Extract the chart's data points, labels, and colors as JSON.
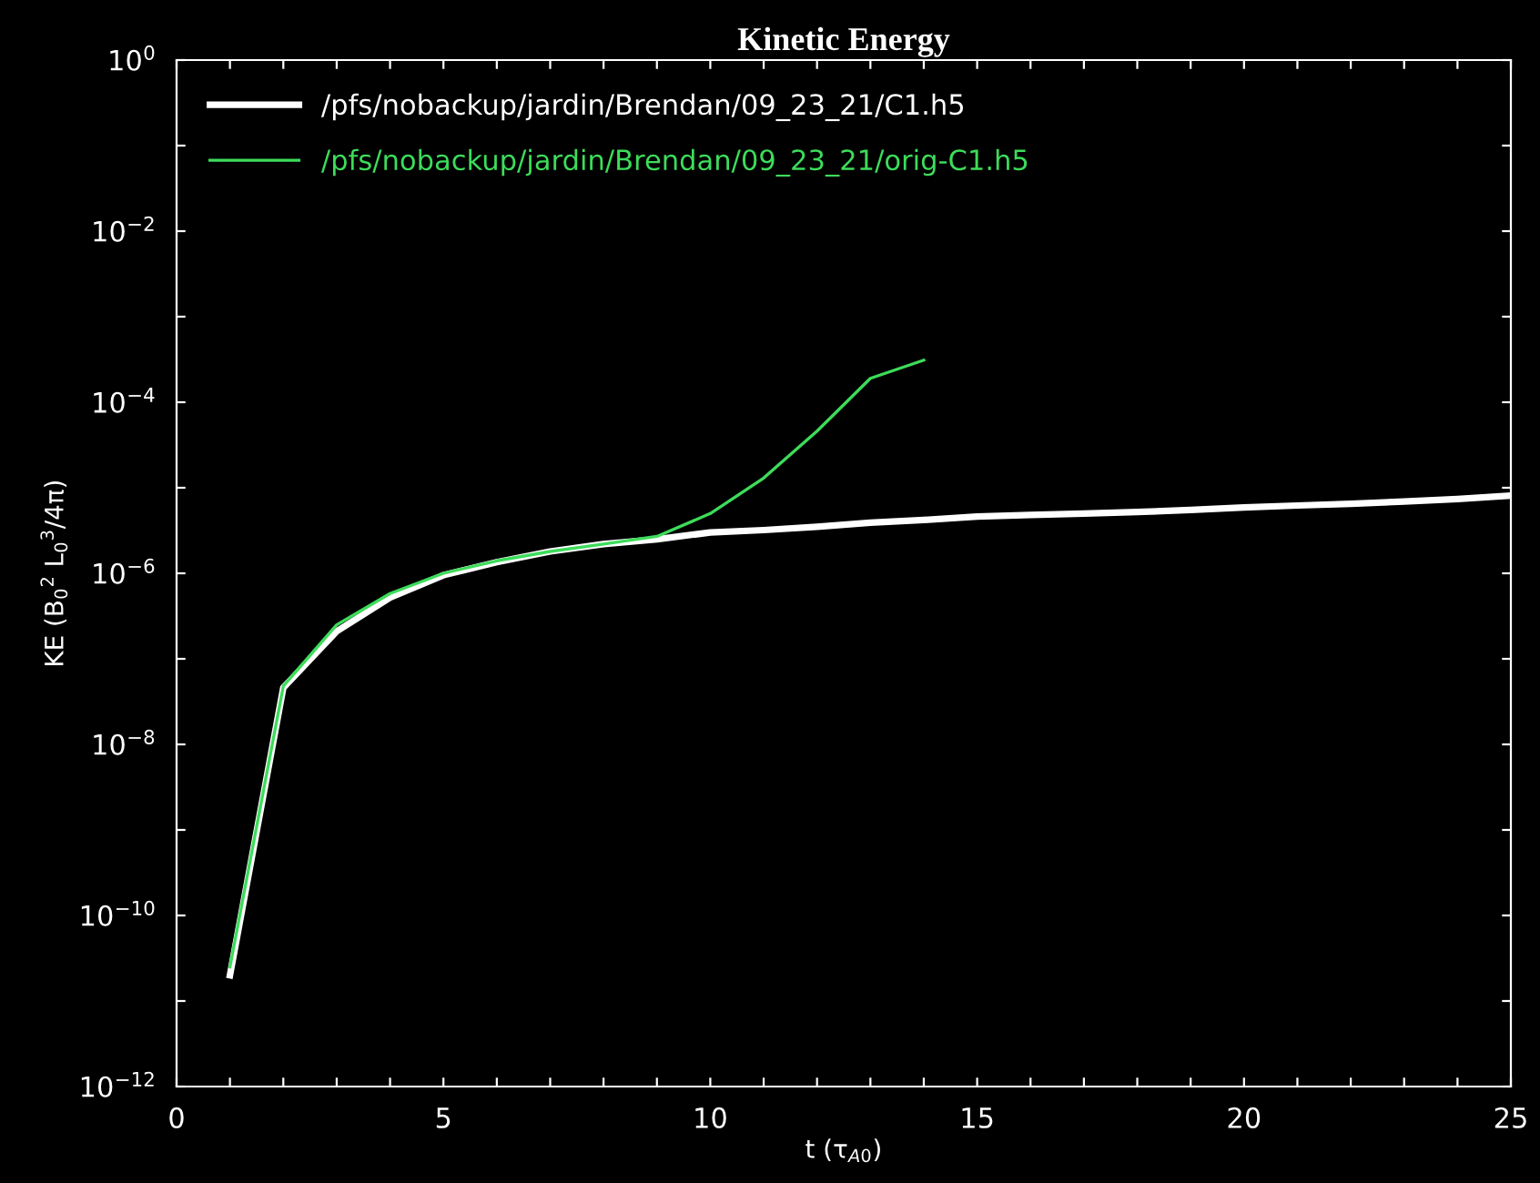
{
  "chart_data": {
    "type": "line",
    "title": "Kinetic Energy",
    "xlabel": "t (τ$_{A0}$)",
    "ylabel": "KE (B$_{0}$$^{2}$ L$_{0}$$^{3}$/4π)",
    "log": "y",
    "grid": false,
    "legend": "top left",
    "marker": "none",
    "line_style": "solid",
    "xlim": [
      0,
      25
    ],
    "ylim": [
      1e-12,
      1
    ],
    "xticks": [
      0,
      {
        "value": 1,
        "label": null
      },
      {
        "value": 2,
        "label": null
      },
      {
        "value": 3,
        "label": null
      },
      {
        "value": 4,
        "label": null
      },
      5,
      {
        "value": 6,
        "label": null
      },
      {
        "value": 7,
        "label": null
      },
      {
        "value": 8,
        "label": null
      },
      {
        "value": 9,
        "label": null
      },
      10,
      {
        "value": 11,
        "label": null
      },
      {
        "value": 12,
        "label": null
      },
      {
        "value": 13,
        "label": null
      },
      {
        "value": 14,
        "label": null
      },
      15,
      {
        "value": 16,
        "label": null
      },
      {
        "value": 17,
        "label": null
      },
      {
        "value": 18,
        "label": null
      },
      {
        "value": 19,
        "label": null
      },
      20,
      {
        "value": 21,
        "label": null
      },
      {
        "value": 22,
        "label": null
      },
      {
        "value": 23,
        "label": null
      },
      {
        "value": 24,
        "label": null
      },
      25
    ],
    "yticks": [
      {
        "value": 1e-12,
        "label": "10$^{−12}$"
      },
      {
        "value": 1e-11,
        "label": null
      },
      {
        "value": 1e-10,
        "label": "10$^{−10}$"
      },
      {
        "value": 1e-09,
        "label": null
      },
      {
        "value": 1e-08,
        "label": "10$^{−8}$"
      },
      {
        "value": 1e-07,
        "label": null
      },
      {
        "value": 1e-06,
        "label": "10$^{−6}$"
      },
      {
        "value": 1e-05,
        "label": null
      },
      {
        "value": 0.0001,
        "label": "10$^{−4}$"
      },
      {
        "value": 0.001,
        "label": null
      },
      {
        "value": 0.01,
        "label": "10$^{−2}$"
      },
      {
        "value": 0.1,
        "label": null
      },
      {
        "value": 1,
        "label": "10$^{0}$"
      }
    ],
    "series": [
      {
        "name": "/pfs/nobackup/jardin/Brendan/09_23_21/C1.h5",
        "color": "#ffffff",
        "x": [
          1,
          2,
          3,
          4,
          5,
          6,
          7,
          8,
          9,
          10,
          11,
          12,
          13,
          14,
          15,
          16,
          17,
          18,
          19,
          20,
          21,
          22,
          23,
          24,
          25
        ],
        "values": [
          2e-11,
          4.6e-08,
          2.1e-07,
          5.2e-07,
          9.5e-07,
          1.35e-06,
          1.8e-06,
          2.2e-06,
          2.5e-06,
          3e-06,
          3.2e-06,
          3.5e-06,
          3.9e-06,
          4.2e-06,
          4.6e-06,
          4.8e-06,
          5e-06,
          5.2e-06,
          5.5e-06,
          5.9e-06,
          6.2e-06,
          6.5e-06,
          6.9e-06,
          7.4e-06,
          8.1e-06
        ]
      },
      {
        "name": "/pfs/nobackup/jardin/Brendan/09_23_21/orig-C1.h5",
        "color": "#3ddc5a",
        "x": [
          1,
          2,
          3,
          4,
          5,
          6,
          7,
          8,
          9,
          10,
          11,
          12,
          13,
          14
        ],
        "values": [
          2.5e-11,
          4.8e-08,
          2.5e-07,
          5.8e-07,
          1e-06,
          1.4e-06,
          1.8e-06,
          2.2e-06,
          2.7e-06,
          5e-06,
          1.3e-05,
          4.6e-05,
          0.00019,
          0.00031
        ]
      }
    ]
  }
}
